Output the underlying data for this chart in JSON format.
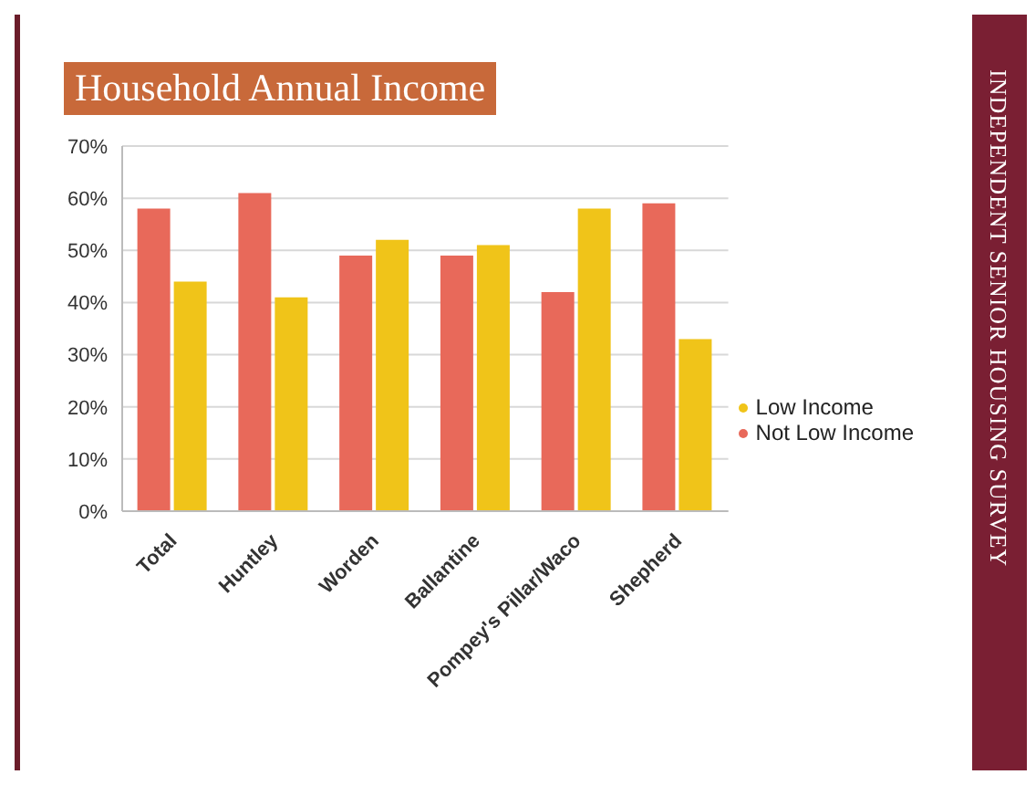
{
  "chart_data": {
    "type": "bar",
    "title": "Household Annual Income",
    "annotations": [
      "INDEPENDENT SENIOR HOUSING SURVEY"
    ],
    "categories": [
      "Total",
      "Huntley",
      "Worden",
      "Ballantine",
      "Pompey's Pillar/Waco",
      "Shepherd"
    ],
    "series": [
      {
        "name": "Not Low Income",
        "color": "#e8695a",
        "values": [
          58,
          61,
          49,
          49,
          42,
          59
        ]
      },
      {
        "name": "Low Income",
        "color": "#f0c419",
        "values": [
          44,
          41,
          52,
          51,
          58,
          33
        ]
      }
    ],
    "ylim": [
      0,
      70
    ],
    "yticks": [
      {
        "value": 0,
        "label": "0%"
      },
      {
        "value": 10,
        "label": "10%"
      },
      {
        "value": 20,
        "label": "20%"
      },
      {
        "value": 30,
        "label": "30%"
      },
      {
        "value": 40,
        "label": "40%"
      },
      {
        "value": 50,
        "label": "50%"
      },
      {
        "value": 60,
        "label": "60%"
      },
      {
        "value": 70,
        "label": "70%"
      }
    ],
    "grid": "y",
    "legend": "right"
  }
}
